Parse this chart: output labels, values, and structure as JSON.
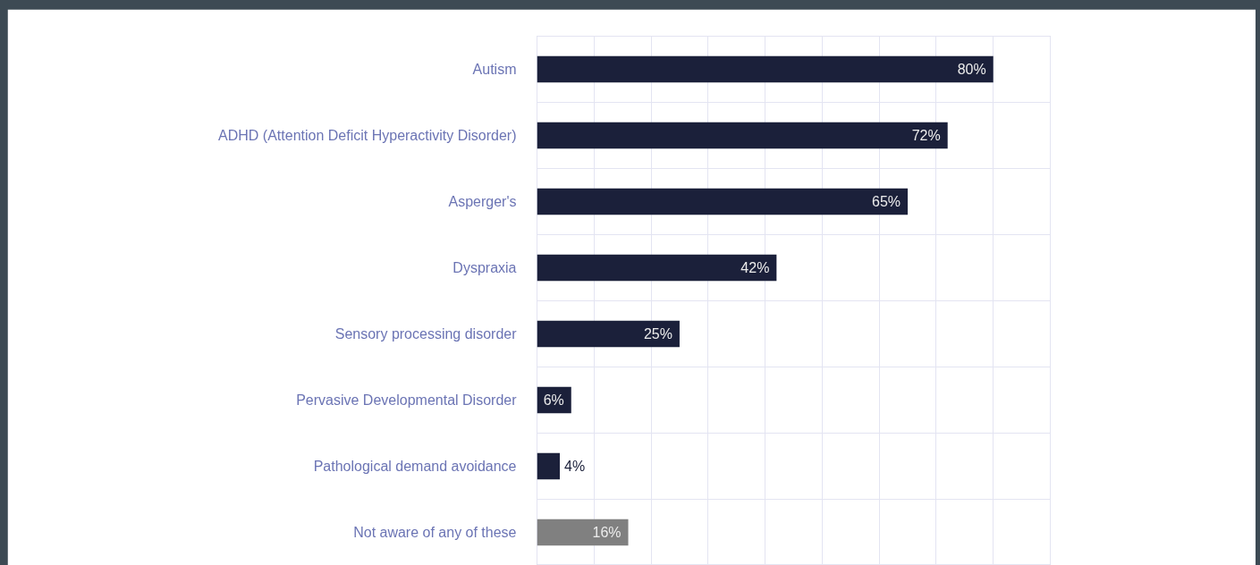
{
  "chart_data": {
    "type": "bar",
    "orientation": "horizontal",
    "categories": [
      "Autism",
      "ADHD (Attention Deficit Hyperactivity Disorder)",
      "Asperger's",
      "Dyspraxia",
      "Sensory processing disorder",
      "Pervasive Developmental Disorder",
      "Pathological demand avoidance",
      "Not aware of any of these"
    ],
    "values": [
      80,
      72,
      65,
      42,
      25,
      6,
      4,
      16
    ],
    "colors": [
      "#1b203a",
      "#1b203a",
      "#1b203a",
      "#1b203a",
      "#1b203a",
      "#1b203a",
      "#1b203a",
      "#808080"
    ],
    "value_labels": [
      "80%",
      "72%",
      "65%",
      "42%",
      "25%",
      "6%",
      "4%",
      "16%"
    ],
    "xlim": [
      0,
      90
    ],
    "xticks": [
      {
        "value": 0,
        "label": null
      },
      {
        "value": 10,
        "label": null
      },
      {
        "value": 20,
        "label": null
      },
      {
        "value": 30,
        "label": null
      },
      {
        "value": 40,
        "label": null
      },
      {
        "value": 50,
        "label": null
      },
      {
        "value": 60,
        "label": null
      },
      {
        "value": 70,
        "label": null
      },
      {
        "value": 80,
        "label": null
      },
      {
        "value": 90,
        "label": null
      }
    ],
    "tick_labels": "y",
    "grid": true
  }
}
